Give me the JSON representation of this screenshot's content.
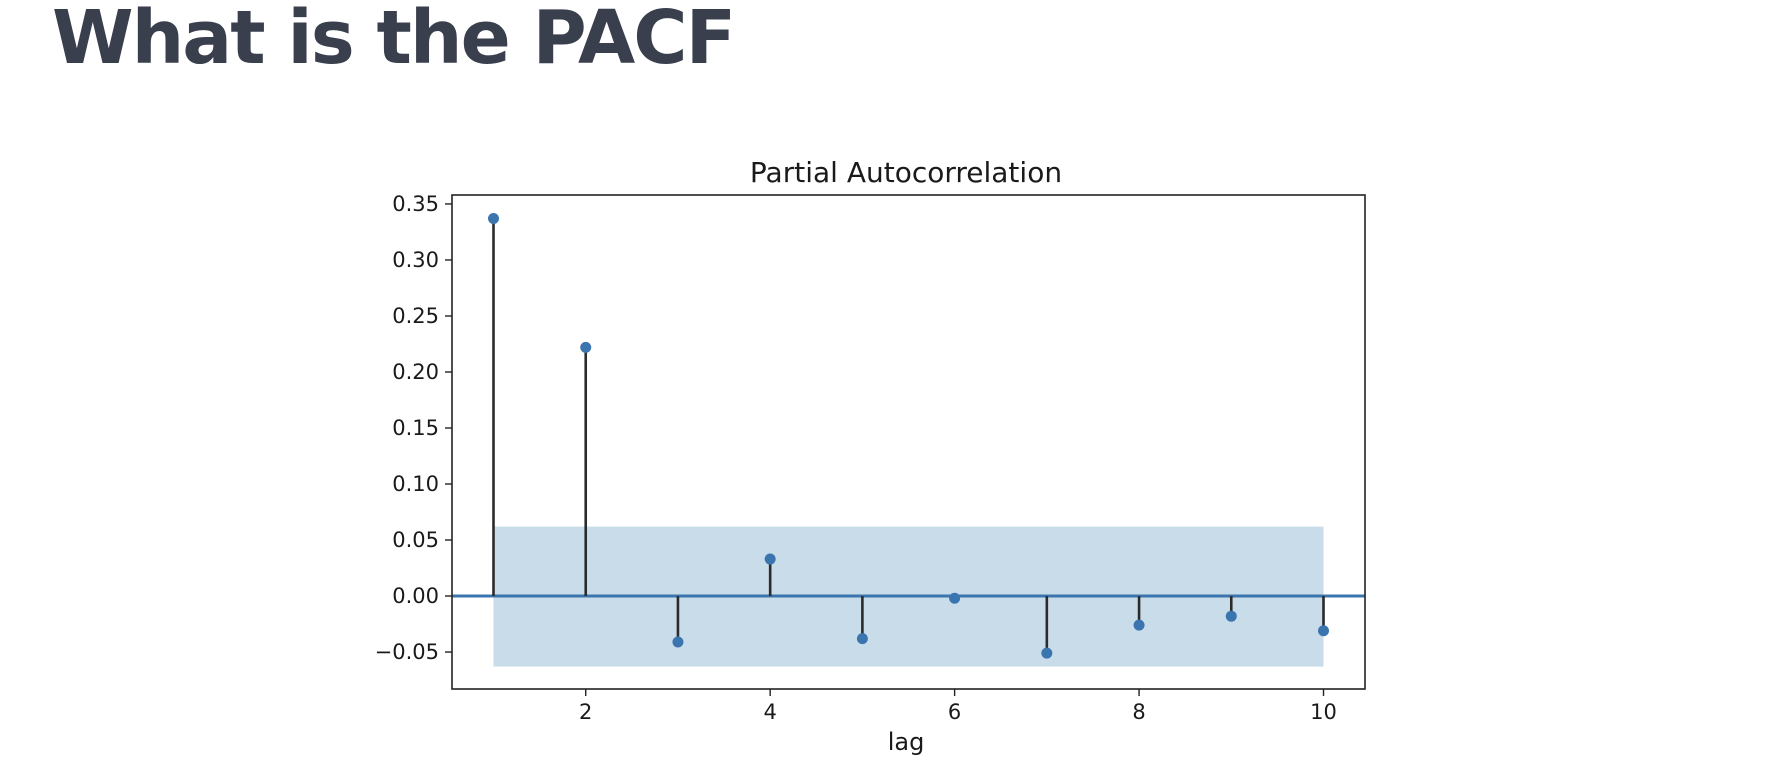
{
  "slide": {
    "title": "What is the PACF"
  },
  "chart_data": {
    "type": "stem",
    "title": "Partial Autocorrelation",
    "xlabel": "lag",
    "ylabel": "",
    "x": [
      1,
      2,
      3,
      4,
      5,
      6,
      7,
      8,
      9,
      10
    ],
    "values": [
      0.337,
      0.222,
      -0.041,
      0.033,
      -0.038,
      -0.002,
      -0.051,
      -0.026,
      -0.018,
      -0.031
    ],
    "xlim": [
      0.55,
      10.45
    ],
    "ylim": [
      -0.083,
      0.358
    ],
    "xticks": [
      2,
      4,
      6,
      8,
      10
    ],
    "yticks": [
      -0.05,
      0.0,
      0.05,
      0.1,
      0.15,
      0.2,
      0.25,
      0.3,
      0.35
    ],
    "ytick_labels": [
      "−0.05",
      "0.00",
      "0.05",
      "0.10",
      "0.15",
      "0.20",
      "0.25",
      "0.30",
      "0.35"
    ],
    "confidence_band": {
      "x_range": [
        1,
        10
      ],
      "lower": -0.063,
      "upper": 0.062
    },
    "grid": false,
    "colors": {
      "marker": "#3b75af",
      "stem": "#2b2b2b",
      "zero_line": "#3b75af",
      "band": "#c9dcea",
      "axes": "#222222"
    }
  }
}
